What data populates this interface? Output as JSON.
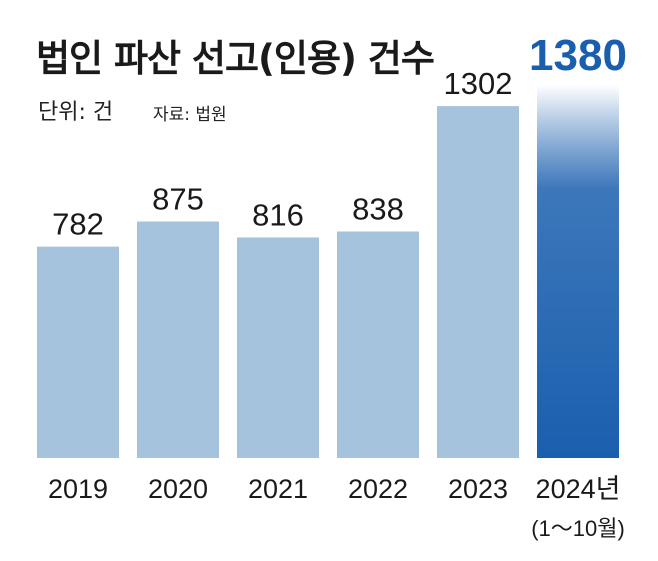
{
  "header": {
    "title": "법인 파산 선고(인용) 건수",
    "unit": "단위: 건",
    "source": "자료: 법원"
  },
  "colors": {
    "normal_bar": "#a6c3de",
    "highlight_bar": "#1a5fae",
    "highlight_bar_top": "#ffffff"
  },
  "chart_data": {
    "type": "bar",
    "title": "법인 파산 선고(인용) 건수",
    "categories": [
      "2019",
      "2020",
      "2021",
      "2022",
      "2023",
      "2024년"
    ],
    "category_sublabels": [
      "",
      "",
      "",
      "",
      "",
      "(1～10월)"
    ],
    "values": [
      782,
      875,
      816,
      838,
      1302,
      1380
    ],
    "highlight_index": 5,
    "ylim": [
      0,
      1380
    ],
    "grid": false,
    "legend": "none"
  }
}
